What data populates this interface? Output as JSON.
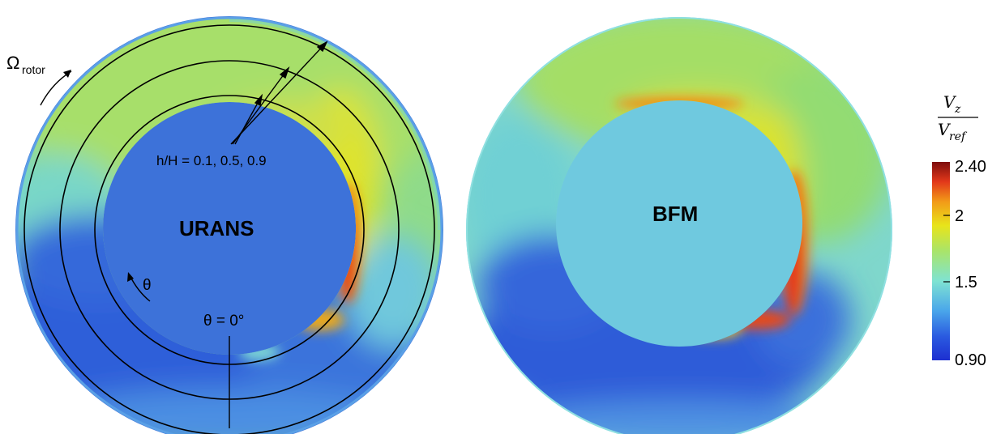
{
  "left_panel": {
    "title": "URANS",
    "rotor_symbol": "Ω",
    "rotor_subscript": "rotor",
    "span_label": "h/H = 0.1, 0.5, 0.9",
    "theta_label": "θ",
    "theta_zero_label": "θ = 0°"
  },
  "right_panel": {
    "title": "BFM"
  },
  "colorbar": {
    "title_numerator_base": "V",
    "title_numerator_sub": "z",
    "title_denominator_base": "V",
    "title_denominator_sub": "ref",
    "max_label": "2.40",
    "min_label": "0.90",
    "ticks": [
      "2",
      "1.5"
    ],
    "stops": [
      "#3b0a7a",
      "#1f3fd6",
      "#3f87e8",
      "#66d0d6",
      "#9be07a",
      "#e3e31b",
      "#f5a21c",
      "#e22d13",
      "#7a0b0b"
    ]
  }
}
